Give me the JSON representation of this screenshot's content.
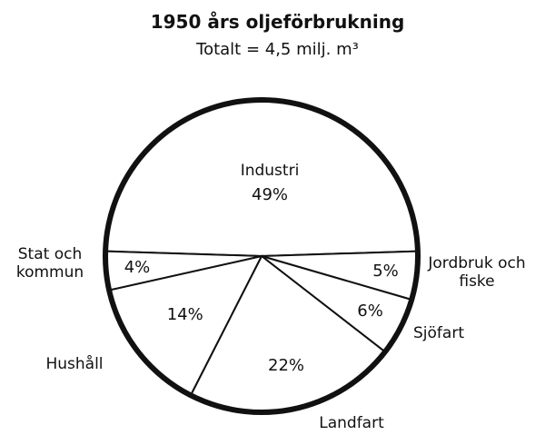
{
  "chart_data": {
    "type": "pie",
    "title": "1950 års oljeförbrukning",
    "subtitle": "Totalt = 4,5 milj. m³",
    "categories": [
      "Industri",
      "Jordbruk och fiske",
      "Sjöfart",
      "Landfart",
      "Hushåll",
      "Stat och kommun"
    ],
    "values": [
      49,
      5,
      6,
      22,
      14,
      4
    ],
    "value_labels": [
      "49%",
      "5%",
      "6%",
      "22%",
      "14%",
      "4%"
    ],
    "color": "#ffffff"
  }
}
